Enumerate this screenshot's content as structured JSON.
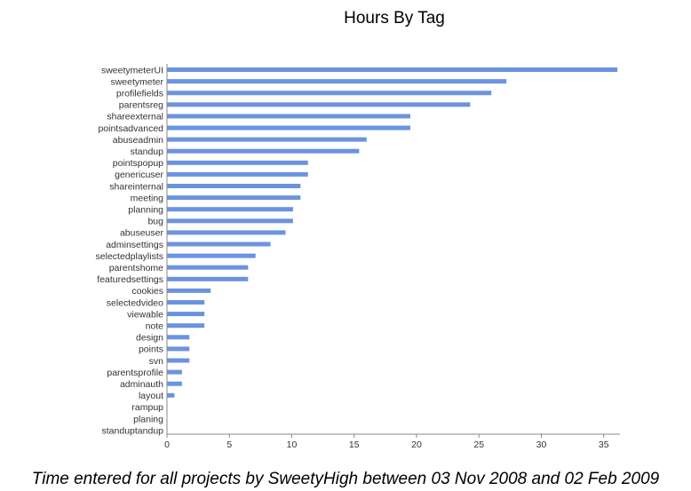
{
  "chart_data": {
    "type": "bar",
    "orientation": "horizontal",
    "title": "Hours By Tag",
    "caption": "Time entered for all projects by SweetyHigh between 03 Nov 2008 and 02 Feb 2009",
    "xlabel": "",
    "ylabel": "",
    "xlim": [
      0,
      36.3
    ],
    "xticks": [
      0,
      5,
      10,
      15,
      20,
      25,
      30,
      35
    ],
    "grid": false,
    "bar_color": "#6b93e0",
    "categories": [
      "sweetymeterUI",
      "sweetymeter",
      "profilefields",
      "parentsreg",
      "shareexternal",
      "pointsadvanced",
      "abuseadmin",
      "standup",
      "pointspopup",
      "genericuser",
      "shareinternal",
      "meeting",
      "planning",
      "bug",
      "abuseuser",
      "adminsettings",
      "selectedplaylists",
      "parentshome",
      "featuredsettings",
      "cookies",
      "selectedvideo",
      "viewable",
      "note",
      "design",
      "points",
      "svn",
      "parentsprofile",
      "adminauth",
      "layout",
      "rampup",
      "planing",
      "standuptandup"
    ],
    "values": [
      36.1,
      27.2,
      26.0,
      24.3,
      19.5,
      19.5,
      16.0,
      15.4,
      11.3,
      11.3,
      10.7,
      10.7,
      10.1,
      10.1,
      9.5,
      8.3,
      7.1,
      6.5,
      6.5,
      3.5,
      3.0,
      3.0,
      3.0,
      1.8,
      1.8,
      1.8,
      1.2,
      1.2,
      0.6,
      0.0,
      0.0,
      0.0
    ]
  }
}
